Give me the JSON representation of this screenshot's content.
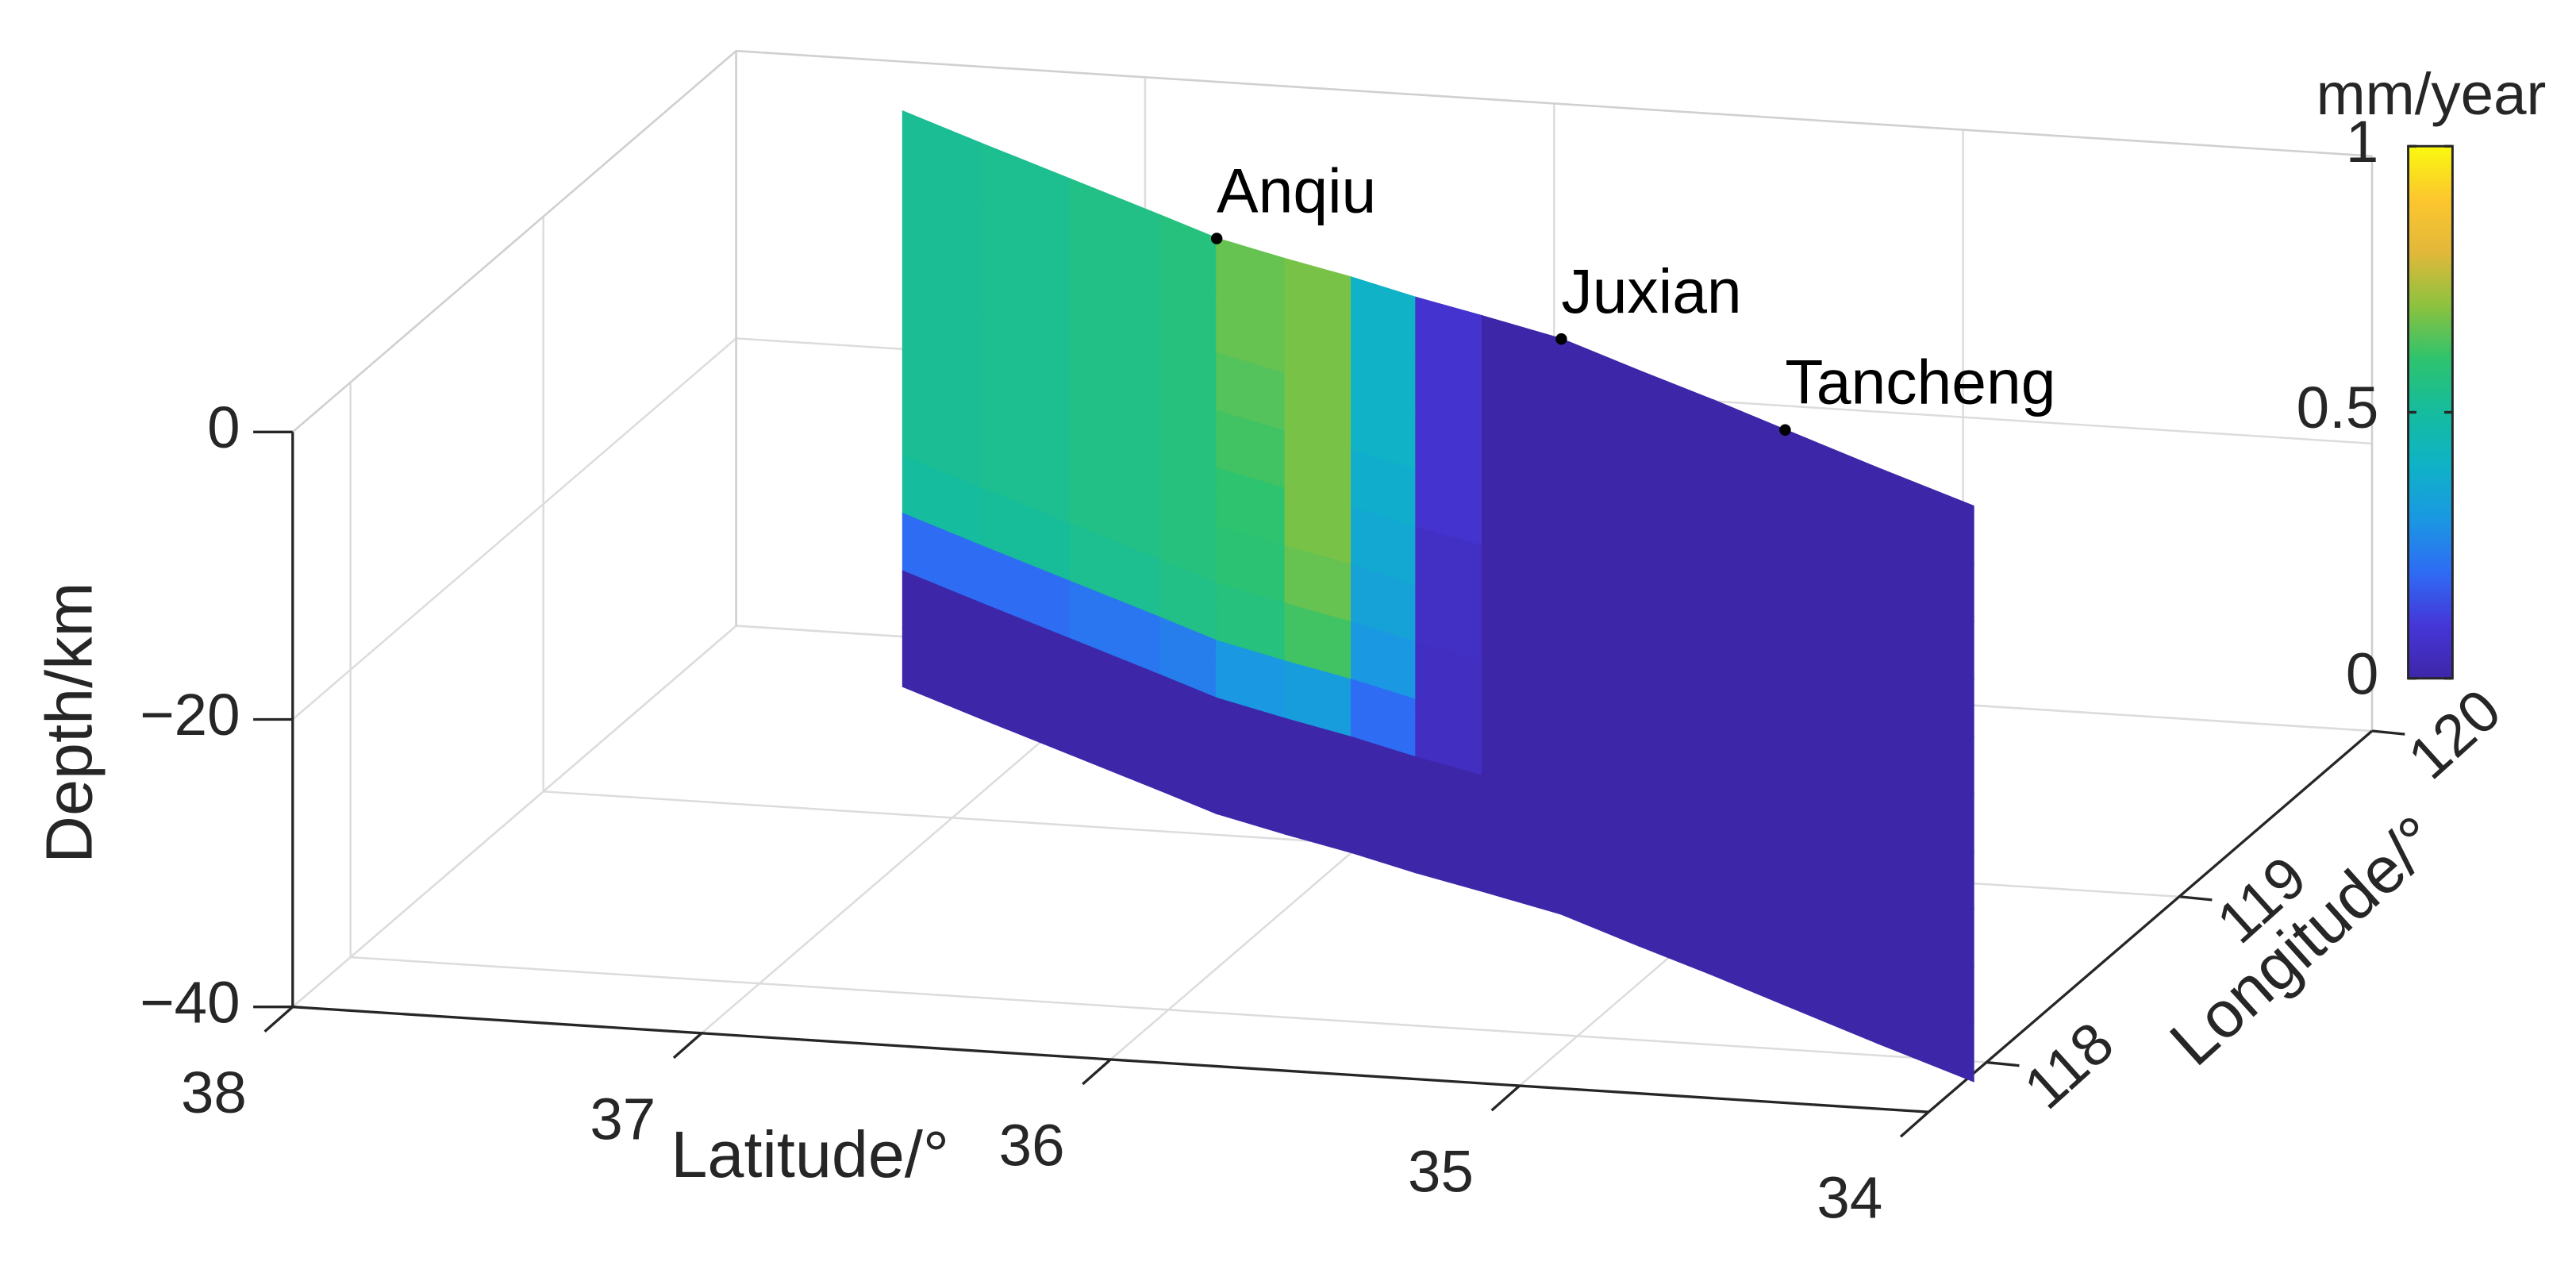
{
  "chart_data": {
    "type": "surface3d",
    "xlabel": "Latitude/°",
    "ylabel": "Longitude/°",
    "zlabel": "Depth/km",
    "xlim": [
      34,
      38
    ],
    "xdir": "reverse",
    "xticks": [
      34,
      35,
      36,
      37,
      38
    ],
    "ylim": [
      117.7,
      120
    ],
    "yticks": [
      118,
      119,
      120
    ],
    "zlim": [
      -40,
      0
    ],
    "zticks": [
      {
        "value": -40,
        "label": "−40"
      },
      {
        "value": -20,
        "label": "−20"
      },
      0
    ],
    "grid": true,
    "annotations": [
      {
        "text": "Anqiu",
        "lat": 36.41,
        "lon": 119.12
      },
      {
        "text": "Juxian",
        "lat": 35.36,
        "lon": 118.68
      },
      {
        "text": "Tancheng",
        "lat": 34.61,
        "lon": 118.25
      }
    ],
    "lat": [
      37.46,
      37.2,
      36.9,
      36.6,
      36.41,
      36.2,
      36.0,
      35.8,
      35.6,
      35.36,
      35.1,
      34.85,
      34.61,
      34.3,
      33.98
    ],
    "lon": [
      119.72,
      119.57,
      119.4,
      119.23,
      119.12,
      119.03,
      118.95,
      118.86,
      118.78,
      118.68,
      118.53,
      118.39,
      118.25,
      118.07,
      117.89
    ],
    "depth": [
      0,
      -4,
      -8,
      -12,
      -16,
      -20,
      -24,
      -28,
      -32,
      -36,
      -40
    ],
    "values": [
      [
        0.52,
        0.53,
        0.55,
        0.57,
        0.66,
        0.68,
        0.4,
        0.08,
        0,
        0,
        0,
        0,
        0,
        0
      ],
      [
        0.52,
        0.53,
        0.55,
        0.57,
        0.66,
        0.68,
        0.4,
        0.08,
        0,
        0,
        0,
        0,
        0,
        0
      ],
      [
        0.52,
        0.53,
        0.55,
        0.57,
        0.64,
        0.68,
        0.4,
        0.08,
        0,
        0,
        0,
        0,
        0,
        0
      ],
      [
        0.52,
        0.53,
        0.55,
        0.57,
        0.62,
        0.68,
        0.38,
        0.08,
        0,
        0,
        0,
        0,
        0,
        0
      ],
      [
        0.52,
        0.53,
        0.55,
        0.57,
        0.6,
        0.68,
        0.36,
        0.06,
        0,
        0,
        0,
        0,
        0,
        0
      ],
      [
        0.52,
        0.53,
        0.55,
        0.57,
        0.59,
        0.66,
        0.34,
        0.06,
        0,
        0,
        0,
        0,
        0,
        0
      ],
      [
        0.5,
        0.51,
        0.53,
        0.55,
        0.57,
        0.62,
        0.3,
        0.05,
        0,
        0,
        0,
        0,
        0,
        0
      ],
      [
        0.2,
        0.2,
        0.22,
        0.24,
        0.3,
        0.32,
        0.2,
        0.05,
        0,
        0,
        0,
        0,
        0,
        0
      ],
      [
        0,
        0,
        0,
        0,
        0,
        0,
        0,
        0,
        0,
        0,
        0,
        0,
        0,
        0
      ],
      [
        0,
        0,
        0,
        0,
        0,
        0,
        0,
        0,
        0,
        0,
        0,
        0,
        0,
        0
      ]
    ],
    "colormap": [
      "#3e26a8",
      "#4536d8",
      "#2e6cf4",
      "#1a98e2",
      "#0fb2c6",
      "#15bc9e",
      "#2ec36e",
      "#8cc23e",
      "#e2b83a",
      "#fcc62e",
      "#f9f90f"
    ],
    "colorbar": {
      "title": "mm/year",
      "lim": [
        0,
        1
      ],
      "ticks": [
        0,
        0.5,
        1
      ]
    }
  }
}
